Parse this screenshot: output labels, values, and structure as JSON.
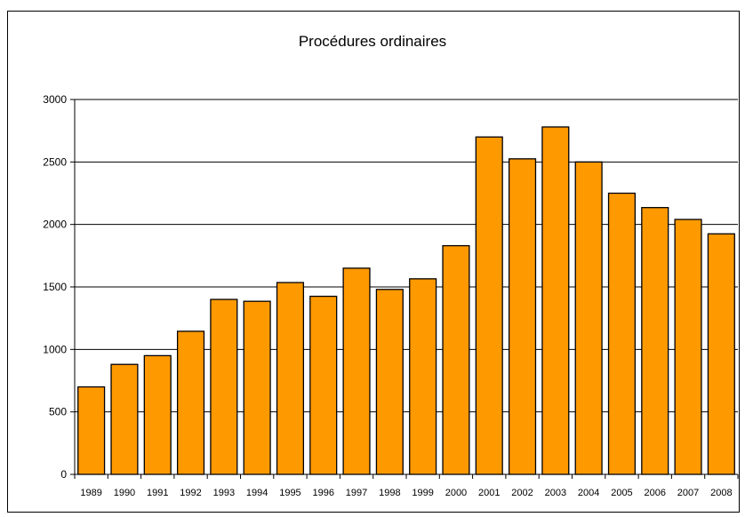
{
  "chart_data": {
    "type": "bar",
    "title": "Procédures ordinaires",
    "xlabel": "",
    "ylabel": "",
    "categories": [
      "1989",
      "1990",
      "1991",
      "1992",
      "1993",
      "1994",
      "1995",
      "1996",
      "1997",
      "1998",
      "1999",
      "2000",
      "2001",
      "2002",
      "2003",
      "2004",
      "2005",
      "2006",
      "2007",
      "2008"
    ],
    "values": [
      700,
      880,
      950,
      1145,
      1400,
      1385,
      1535,
      1425,
      1650,
      1480,
      1565,
      1830,
      2700,
      2525,
      2780,
      2500,
      2250,
      2135,
      2040,
      1925
    ],
    "ylim": [
      0,
      3000
    ],
    "yticks": [
      0,
      500,
      1000,
      1500,
      2000,
      2500,
      3000
    ],
    "grid": true,
    "legend": "none",
    "bar_color": "#FF9900"
  }
}
